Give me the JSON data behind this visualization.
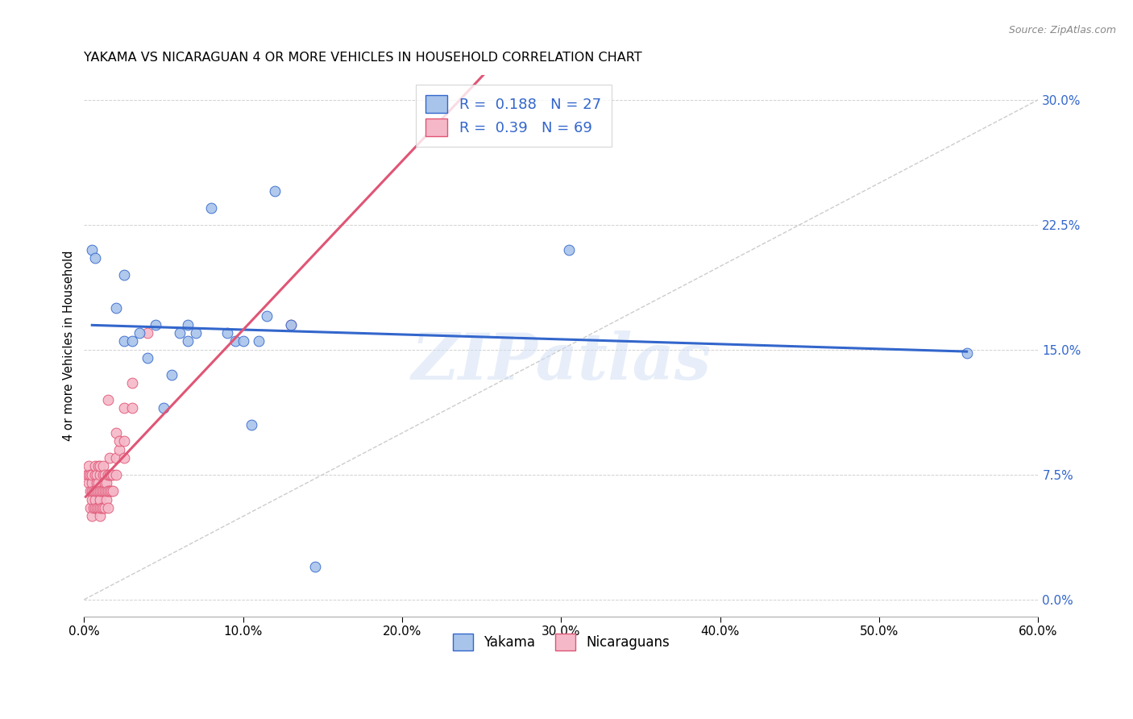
{
  "title": "YAKAMA VS NICARAGUAN 4 OR MORE VEHICLES IN HOUSEHOLD CORRELATION CHART",
  "source": "Source: ZipAtlas.com",
  "ylabel": "4 or more Vehicles in Household",
  "xlim": [
    0.0,
    0.6
  ],
  "ylim": [
    -0.005,
    0.305
  ],
  "yakama_R": 0.188,
  "yakama_N": 27,
  "nicaraguan_R": 0.39,
  "nicaraguan_N": 69,
  "yakama_color": "#a8c4ea",
  "nicaraguan_color": "#f5b8c8",
  "yakama_line_color": "#3366cc",
  "nicaraguan_line_color": "#e05575",
  "diagonal_color": "#cccccc",
  "background_color": "#ffffff",
  "watermark": "ZIPatlas",
  "yakama_x": [
    0.005,
    0.007,
    0.02,
    0.025,
    0.025,
    0.03,
    0.035,
    0.04,
    0.045,
    0.05,
    0.055,
    0.06,
    0.065,
    0.065,
    0.07,
    0.08,
    0.09,
    0.095,
    0.1,
    0.105,
    0.11,
    0.115,
    0.12,
    0.13,
    0.145,
    0.305,
    0.555
  ],
  "yakama_y": [
    0.21,
    0.205,
    0.175,
    0.155,
    0.195,
    0.155,
    0.16,
    0.145,
    0.165,
    0.115,
    0.135,
    0.16,
    0.155,
    0.165,
    0.16,
    0.235,
    0.16,
    0.155,
    0.155,
    0.105,
    0.155,
    0.17,
    0.245,
    0.165,
    0.02,
    0.21,
    0.148
  ],
  "nicaraguan_x": [
    0.002,
    0.003,
    0.003,
    0.003,
    0.004,
    0.004,
    0.004,
    0.005,
    0.005,
    0.005,
    0.005,
    0.005,
    0.006,
    0.006,
    0.007,
    0.007,
    0.007,
    0.007,
    0.007,
    0.008,
    0.008,
    0.008,
    0.008,
    0.009,
    0.009,
    0.009,
    0.009,
    0.01,
    0.01,
    0.01,
    0.01,
    0.01,
    0.01,
    0.011,
    0.011,
    0.012,
    0.012,
    0.012,
    0.012,
    0.013,
    0.013,
    0.013,
    0.013,
    0.014,
    0.014,
    0.014,
    0.015,
    0.015,
    0.015,
    0.015,
    0.016,
    0.016,
    0.016,
    0.017,
    0.017,
    0.018,
    0.018,
    0.02,
    0.02,
    0.02,
    0.022,
    0.022,
    0.025,
    0.025,
    0.025,
    0.03,
    0.03,
    0.04,
    0.13
  ],
  "nicaraguan_y": [
    0.075,
    0.07,
    0.075,
    0.08,
    0.055,
    0.065,
    0.075,
    0.05,
    0.06,
    0.065,
    0.07,
    0.075,
    0.055,
    0.065,
    0.055,
    0.06,
    0.065,
    0.075,
    0.08,
    0.055,
    0.065,
    0.07,
    0.075,
    0.055,
    0.065,
    0.07,
    0.08,
    0.05,
    0.055,
    0.06,
    0.065,
    0.075,
    0.08,
    0.055,
    0.065,
    0.055,
    0.065,
    0.075,
    0.08,
    0.055,
    0.065,
    0.07,
    0.075,
    0.06,
    0.065,
    0.07,
    0.055,
    0.065,
    0.075,
    0.12,
    0.065,
    0.075,
    0.085,
    0.065,
    0.075,
    0.065,
    0.075,
    0.075,
    0.085,
    0.1,
    0.09,
    0.095,
    0.085,
    0.095,
    0.115,
    0.115,
    0.13,
    0.16,
    0.165
  ]
}
